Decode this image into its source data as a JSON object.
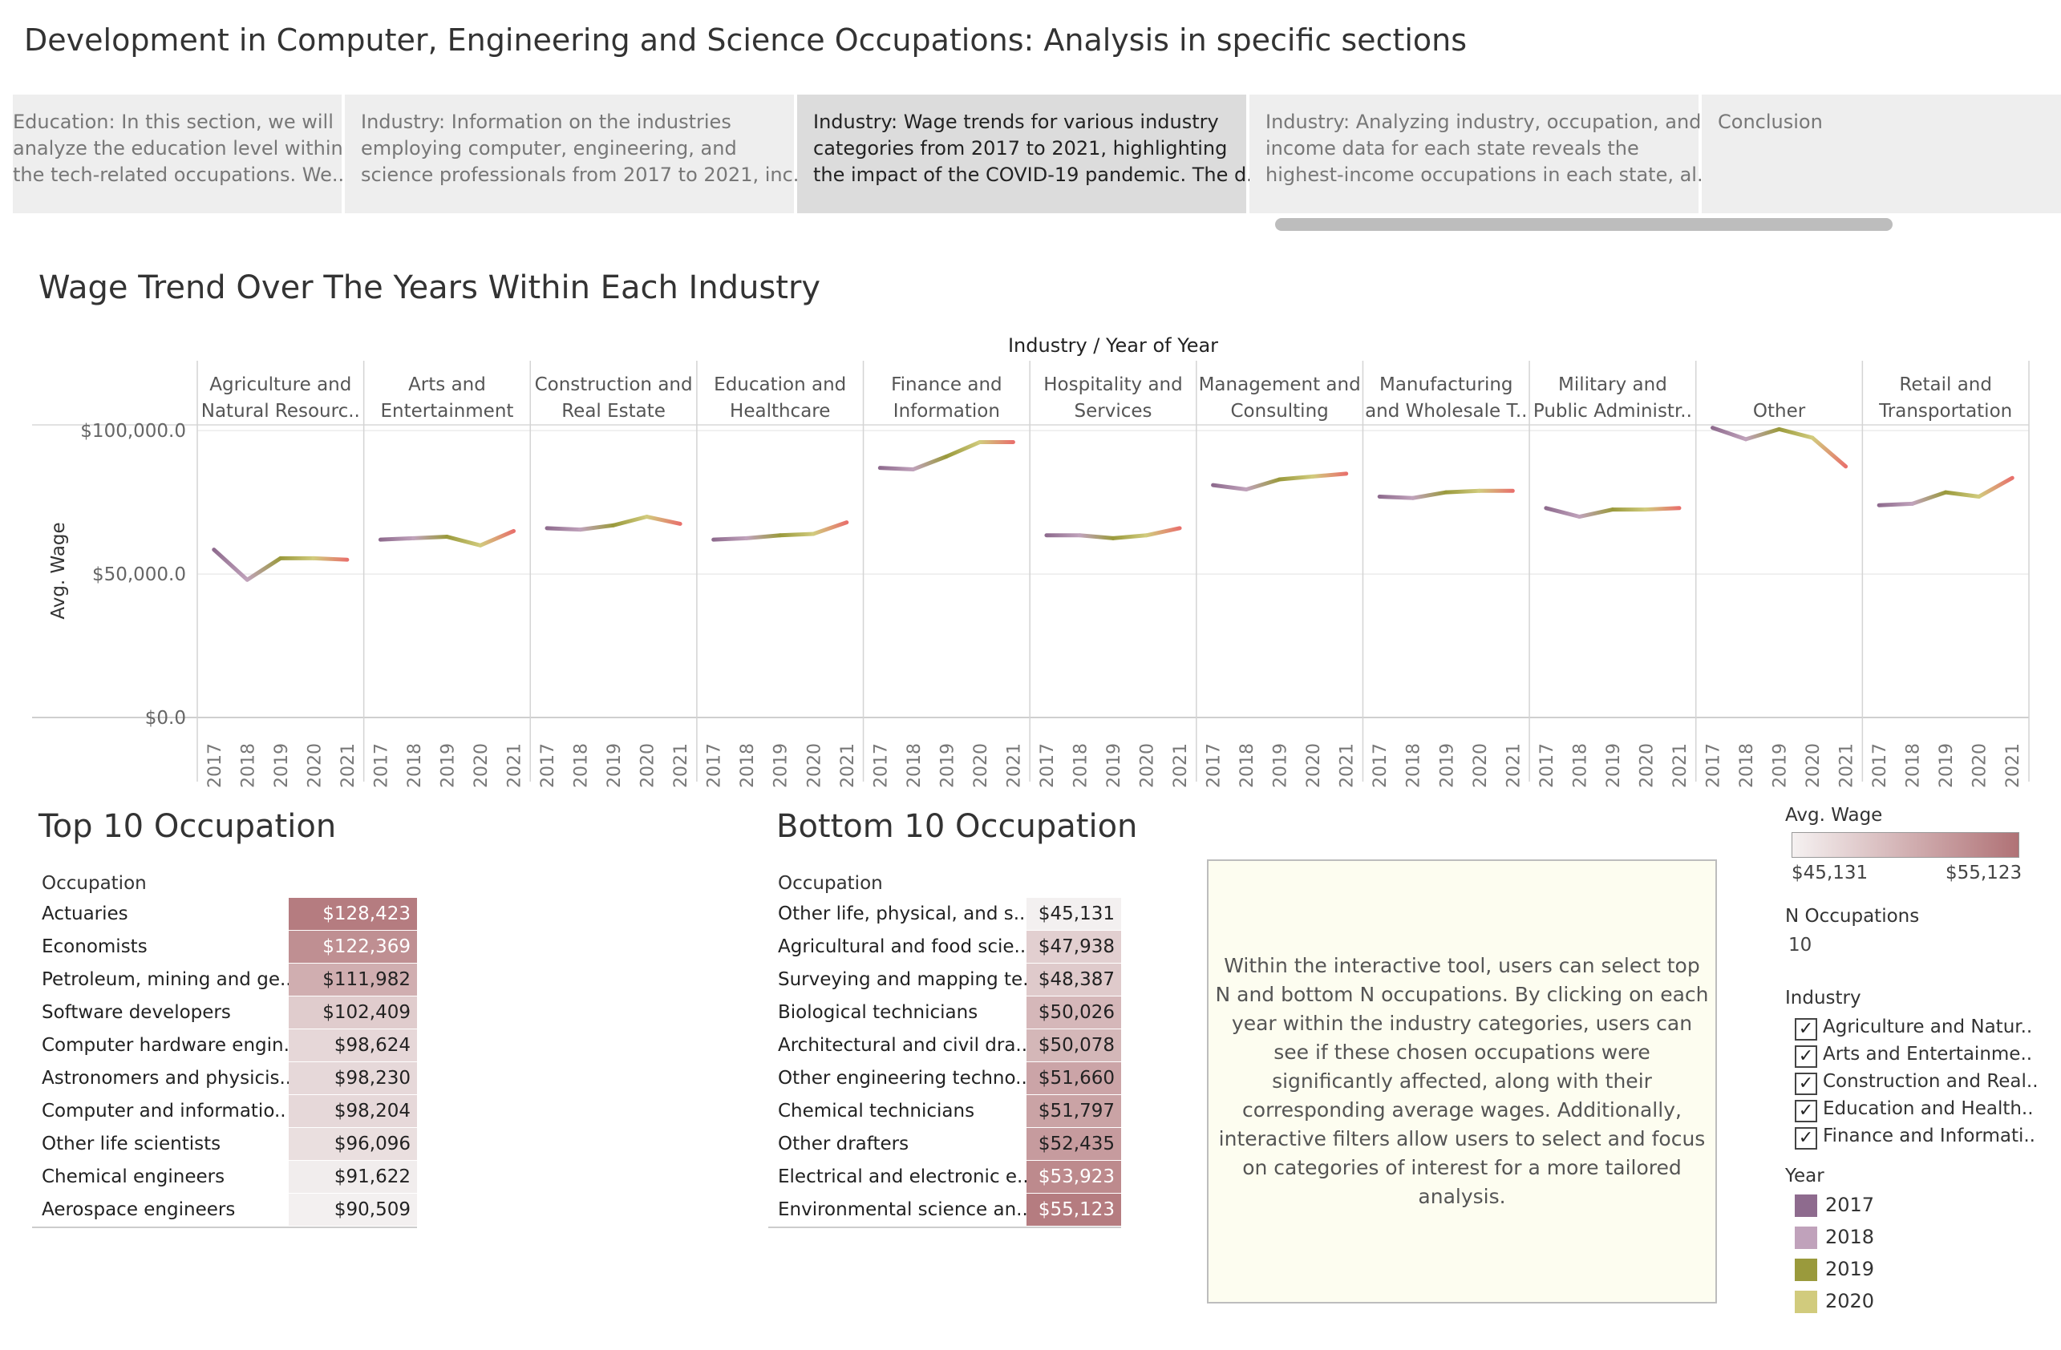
{
  "title": "Development in Computer, Engineering and Science Occupations: Analysis in specific sections",
  "tabs": [
    {
      "lines": [
        "Education: In this section, we will",
        "analyze the education level within",
        "the tech-related occupations. We.."
      ]
    },
    {
      "lines": [
        "Industry: Information on the industries",
        "employing computer, engineering, and",
        "science professionals from 2017 to 2021, inc.."
      ]
    },
    {
      "lines": [
        "Industry: Wage trends for various industry",
        "categories from 2017 to 2021, highlighting",
        "the impact of the COVID-19 pandemic. The d.."
      ]
    },
    {
      "lines": [
        "Industry: Analyzing industry, occupation, and",
        "income data for each state reveals the",
        "highest-income occupations in each state, al.."
      ]
    },
    {
      "lines": [
        "Conclusion"
      ]
    }
  ],
  "wage_chart": {
    "title": "Wage Trend Over The Years Within Each Industry",
    "header": "Industry  /  Year of Year",
    "ylabel": "Avg. Wage",
    "yticks": [
      "$100,000.0",
      "$50,000.0",
      "$0.0"
    ]
  },
  "chart_data": {
    "type": "line",
    "title": "Wage Trend Over The Years Within Each Industry",
    "xlabel": "Industry / Year of Year",
    "ylabel": "Avg. Wage",
    "ylim": [
      0,
      102000
    ],
    "years": [
      "2017",
      "2018",
      "2019",
      "2020",
      "2021"
    ],
    "year_colors": [
      "#8e6b8e",
      "#c0a2bb",
      "#9a9a3c",
      "#d1cb7d",
      "#e8716c"
    ],
    "panels": [
      {
        "label": [
          "Agriculture and",
          "Natural Resourc.."
        ],
        "values": [
          58500,
          48000,
          55500,
          55500,
          55000
        ]
      },
      {
        "label": [
          "Arts and",
          "Entertainment"
        ],
        "values": [
          62000,
          62500,
          63000,
          60000,
          65000
        ]
      },
      {
        "label": [
          "Construction and",
          "Real Estate"
        ],
        "values": [
          66000,
          65500,
          67000,
          70000,
          67500
        ]
      },
      {
        "label": [
          "Education and",
          "Healthcare"
        ],
        "values": [
          62000,
          62500,
          63500,
          64000,
          68000
        ]
      },
      {
        "label": [
          "Finance and",
          "Information"
        ],
        "values": [
          87000,
          86500,
          91000,
          96000,
          96000
        ]
      },
      {
        "label": [
          "Hospitality and",
          "Services"
        ],
        "values": [
          63500,
          63500,
          62500,
          63500,
          66000
        ]
      },
      {
        "label": [
          "Management and",
          "Consulting"
        ],
        "values": [
          81000,
          79500,
          83000,
          84000,
          85000
        ]
      },
      {
        "label": [
          "Manufacturing",
          "and Wholesale T.."
        ],
        "values": [
          77000,
          76500,
          78500,
          79000,
          79000
        ]
      },
      {
        "label": [
          "Military and",
          "Public Administr.."
        ],
        "values": [
          73000,
          70000,
          72500,
          72500,
          73000
        ]
      },
      {
        "label": [
          "Other"
        ],
        "values": [
          101000,
          97000,
          100500,
          97500,
          87500
        ]
      },
      {
        "label": [
          "Retail and",
          "Transportation"
        ],
        "values": [
          74000,
          74500,
          78500,
          77000,
          83500
        ]
      }
    ]
  },
  "top10": {
    "title": "Top 10 Occupation",
    "column_header": "Occupation",
    "rows": [
      {
        "name": "Actuaries",
        "value": "$128,423",
        "wage": 128423
      },
      {
        "name": "Economists",
        "value": "$122,369",
        "wage": 122369
      },
      {
        "name": "Petroleum, mining and ge..",
        "value": "$111,982",
        "wage": 111982
      },
      {
        "name": "Software developers",
        "value": "$102,409",
        "wage": 102409
      },
      {
        "name": "Computer hardware engin..",
        "value": "$98,624",
        "wage": 98624
      },
      {
        "name": "Astronomers and physicis..",
        "value": "$98,230",
        "wage": 98230
      },
      {
        "name": "Computer and informatio..",
        "value": "$98,204",
        "wage": 98204
      },
      {
        "name": "Other life scientists",
        "value": "$96,096",
        "wage": 96096
      },
      {
        "name": "Chemical engineers",
        "value": "$91,622",
        "wage": 91622
      },
      {
        "name": "Aerospace engineers",
        "value": "$90,509",
        "wage": 90509
      }
    ]
  },
  "bottom10": {
    "title": "Bottom 10 Occupation",
    "column_header": "Occupation",
    "rows": [
      {
        "name": "Other life, physical, and s..",
        "value": "$45,131",
        "wage": 45131
      },
      {
        "name": "Agricultural and food scie..",
        "value": "$47,938",
        "wage": 47938
      },
      {
        "name": "Surveying and mapping te..",
        "value": "$48,387",
        "wage": 48387
      },
      {
        "name": "Biological technicians",
        "value": "$50,026",
        "wage": 50026
      },
      {
        "name": "Architectural and civil dra..",
        "value": "$50,078",
        "wage": 50078
      },
      {
        "name": "Other engineering techno..",
        "value": "$51,660",
        "wage": 51660
      },
      {
        "name": "Chemical technicians",
        "value": "$51,797",
        "wage": 51797
      },
      {
        "name": "Other drafters",
        "value": "$52,435",
        "wage": 52435
      },
      {
        "name": "Electrical and electronic e..",
        "value": "$53,923",
        "wage": 53923
      },
      {
        "name": "Environmental science an..",
        "value": "$55,123",
        "wage": 55123
      }
    ]
  },
  "note": "Within the interactive tool, users can select top N and bottom N occupations. By clicking on each year within the industry categories, users can see if these chosen occupations were significantly affected, along with their corresponding average wages. Additionally, interactive filters allow users to select and focus on categories of interest for a more tailored analysis.",
  "legend": {
    "wage_title": "Avg. Wage",
    "wage_min": "$45,131",
    "wage_max": "$55,123",
    "gradient_colors": [
      "#f5f1f1",
      "#b07276"
    ],
    "n_title": "N Occupations",
    "n_value": "10",
    "industry_title": "Industry",
    "industries": [
      "Agriculture and Natur..",
      "Arts and Entertainme..",
      "Construction and Real..",
      "Education and Health..",
      "Finance and Informati.."
    ],
    "checkmark": "✓",
    "year_title": "Year",
    "years": [
      {
        "label": "2017",
        "color": "#8e6b8e"
      },
      {
        "label": "2018",
        "color": "#c0a2bb"
      },
      {
        "label": "2019",
        "color": "#9a9a3c"
      },
      {
        "label": "2020",
        "color": "#d1cb7d"
      }
    ]
  }
}
